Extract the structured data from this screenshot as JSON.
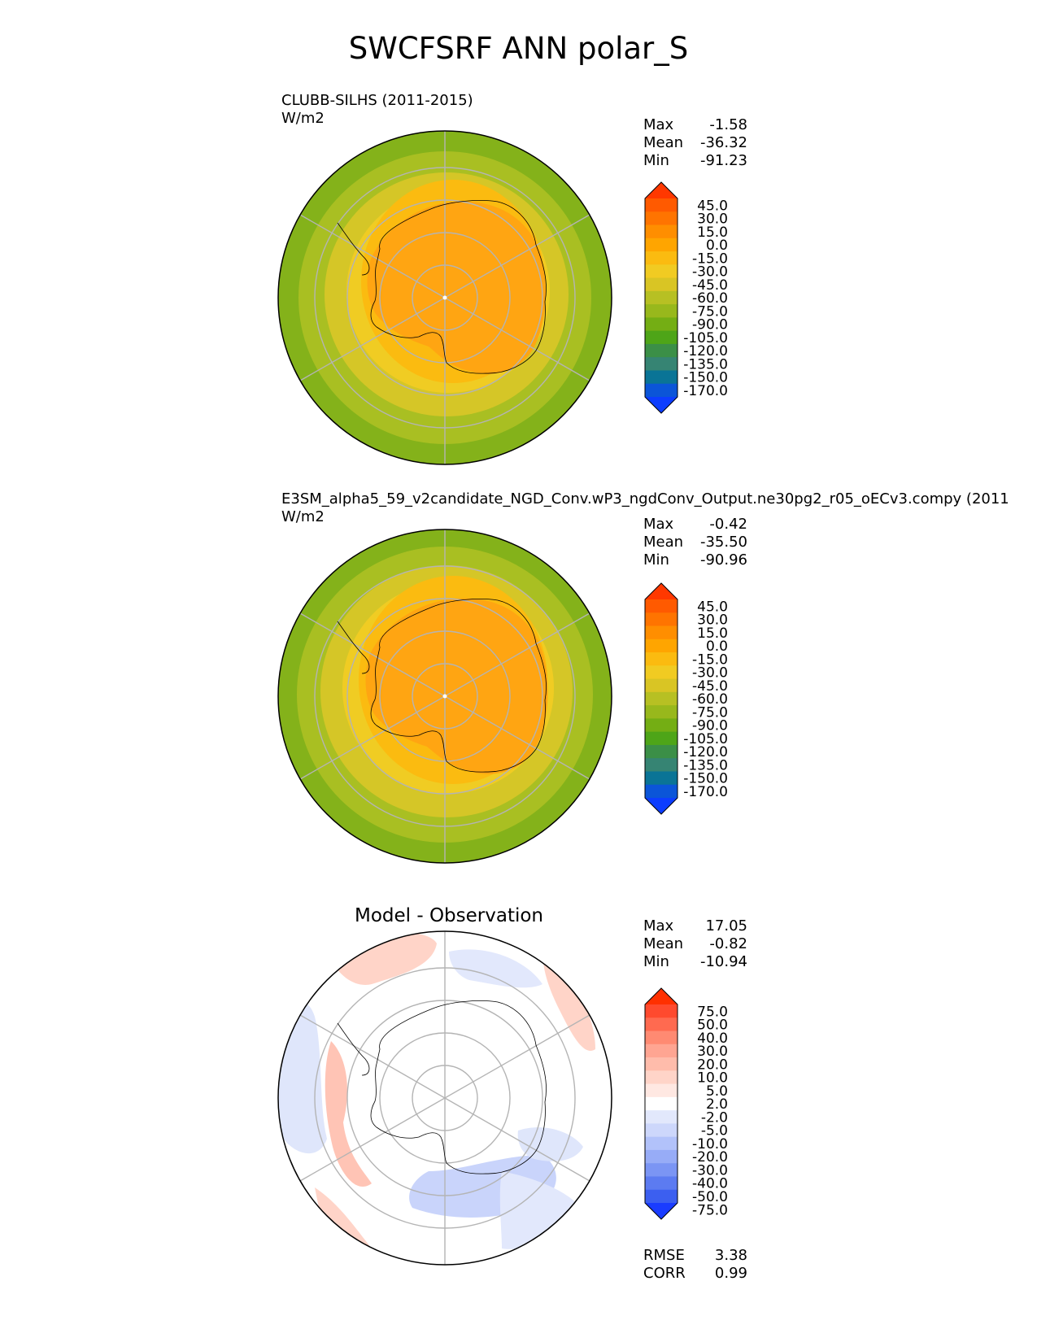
{
  "title": "SWCFSRF ANN polar_S",
  "panels": [
    {
      "kind": "test",
      "title_lines": [
        "CLUBB-SILHS (2011-2015)",
        "W/m2"
      ],
      "stats": [
        {
          "label": "Max",
          "value": "-1.58"
        },
        {
          "label": "Mean",
          "value": "-36.32"
        },
        {
          "label": "Min",
          "value": "-91.23"
        }
      ],
      "colorbar": {
        "ticks": [
          "45.0",
          "30.0",
          "15.0",
          "0.0",
          "-15.0",
          "-30.0",
          "-45.0",
          "-60.0",
          "-75.0",
          "-90.0",
          "-105.0",
          "-120.0",
          "-135.0",
          "-150.0",
          "-170.0"
        ],
        "colors": [
          "#ff3800",
          "#ff5a00",
          "#ff7400",
          "#ff8e00",
          "#ffa500",
          "#fbbb10",
          "#f1cb22",
          "#d9c524",
          "#b7c023",
          "#98b81c",
          "#74ae14",
          "#4ea518",
          "#3b8f47",
          "#368473",
          "#0a7496",
          "#0b55d8",
          "#0c3dff"
        ]
      }
    },
    {
      "kind": "reference",
      "title_lines": [
        "E3SM_alpha5_59_v2candidate_NGD_Conv.wP3_ngdConv_Output.ne30pg2_r05_oECv3.compy (2011",
        "W/m2"
      ],
      "stats": [
        {
          "label": "Max",
          "value": "-0.42"
        },
        {
          "label": "Mean",
          "value": "-35.50"
        },
        {
          "label": "Min",
          "value": "-90.96"
        }
      ],
      "colorbar": {
        "ticks": [
          "45.0",
          "30.0",
          "15.0",
          "0.0",
          "-15.0",
          "-30.0",
          "-45.0",
          "-60.0",
          "-75.0",
          "-90.0",
          "-105.0",
          "-120.0",
          "-135.0",
          "-150.0",
          "-170.0"
        ],
        "colors": [
          "#ff3800",
          "#ff5a00",
          "#ff7400",
          "#ff8e00",
          "#ffa500",
          "#fbbb10",
          "#f1cb22",
          "#d9c524",
          "#b7c023",
          "#98b81c",
          "#74ae14",
          "#4ea518",
          "#3b8f47",
          "#368473",
          "#0a7496",
          "#0b55d8",
          "#0c3dff"
        ]
      }
    },
    {
      "kind": "difference",
      "title_center": "Model - Observation",
      "stats": [
        {
          "label": "Max",
          "value": "17.05"
        },
        {
          "label": "Mean",
          "value": "-0.82"
        },
        {
          "label": "Min",
          "value": "-10.94"
        }
      ],
      "extra_stats": [
        {
          "label": "RMSE",
          "value": "3.38"
        },
        {
          "label": "CORR",
          "value": "0.99"
        }
      ],
      "colorbar": {
        "ticks": [
          "75.0",
          "50.0",
          "40.0",
          "30.0",
          "20.0",
          "10.0",
          "5.0",
          "2.0",
          "-2.0",
          "-5.0",
          "-10.0",
          "-20.0",
          "-30.0",
          "-40.0",
          "-50.0",
          "-75.0"
        ],
        "colors": [
          "#ff3000",
          "#ff4a2e",
          "#ff6a50",
          "#ff8a72",
          "#ffa592",
          "#ffbcab",
          "#ffd4c8",
          "#ffe8e2",
          "#ffffff",
          "#e2e8fc",
          "#cdd7fb",
          "#b2c2fa",
          "#97acf7",
          "#7b95f4",
          "#5c7bf1",
          "#3c5ff0",
          "#1a3cff"
        ]
      }
    }
  ],
  "chart_data": [
    {
      "type": "heatmap",
      "projection": "south polar stereographic",
      "title": "CLUBB-SILHS (2011-2015)",
      "units": "W/m2",
      "max": -1.58,
      "mean": -36.32,
      "min": -91.23,
      "contour_levels": [
        -170,
        -150,
        -135,
        -120,
        -105,
        -90,
        -75,
        -60,
        -45,
        -30,
        -15,
        0,
        15,
        30,
        45
      ],
      "legend": "right",
      "grid": true
    },
    {
      "type": "heatmap",
      "projection": "south polar stereographic",
      "title": "E3SM_alpha5_59_v2candidate_NGD_Conv.wP3_ngdConv_Output.ne30pg2_r05_oECv3.compy (2011",
      "units": "W/m2",
      "max": -0.42,
      "mean": -35.5,
      "min": -90.96,
      "contour_levels": [
        -170,
        -150,
        -135,
        -120,
        -105,
        -90,
        -75,
        -60,
        -45,
        -30,
        -15,
        0,
        15,
        30,
        45
      ],
      "legend": "right",
      "grid": true
    },
    {
      "type": "heatmap",
      "projection": "south polar stereographic",
      "title": "Model - Observation",
      "max": 17.05,
      "mean": -0.82,
      "min": -10.94,
      "rmse": 3.38,
      "corr": 0.99,
      "contour_levels": [
        -75,
        -50,
        -40,
        -30,
        -20,
        -10,
        -5,
        -2,
        2,
        5,
        10,
        20,
        30,
        40,
        50,
        75
      ],
      "legend": "right",
      "grid": true
    }
  ]
}
